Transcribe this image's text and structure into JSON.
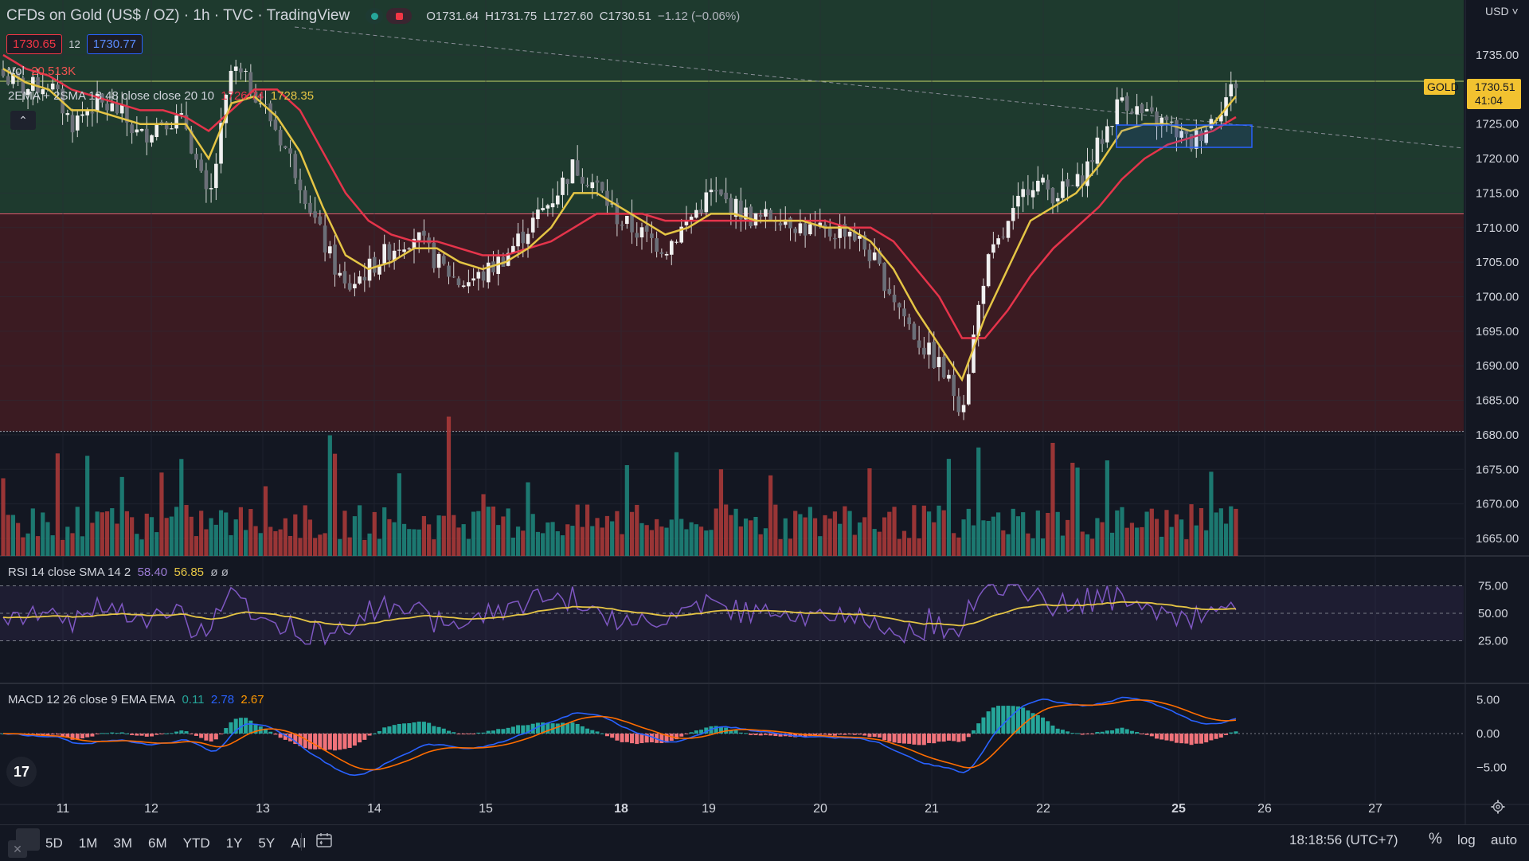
{
  "header": {
    "symbol": "CFDs on Gold (US$ / OZ)",
    "interval": "1h",
    "source": "TVC",
    "brand": "TradingView",
    "open_label": "O",
    "open": "1731.64",
    "high_label": "H",
    "high": "1731.75",
    "low_label": "L",
    "low": "1727.60",
    "close_label": "C",
    "close": "1730.51",
    "change": "−1.12 (−0.06%)"
  },
  "trade": {
    "sell": "1730.65",
    "spread": "12",
    "buy": "1730.77"
  },
  "volume": {
    "label": "Vol",
    "value": "20.513K"
  },
  "ma_legend": {
    "label": "2EMA + 2SMA 13 48 close close 20 10",
    "v1": "1726.74",
    "v2": "1728.35"
  },
  "rsi_legend": {
    "label": "RSI 14 close SMA 14 2",
    "v1": "58.40",
    "v2": "56.85",
    "extra": "ø ø"
  },
  "macd_legend": {
    "label": "MACD 12 26 close 9 EMA EMA",
    "v1": "0.11",
    "v2": "2.78",
    "v3": "2.67"
  },
  "currency": "USD",
  "price_axis": [
    "1735.00",
    "1730.00",
    "1725.00",
    "1720.00",
    "1715.00",
    "1710.00",
    "1705.00",
    "1700.00",
    "1695.00",
    "1690.00",
    "1685.00",
    "1680.00",
    "1675.00",
    "1670.00",
    "1665.00"
  ],
  "rsi_axis": [
    "75.00",
    "50.00",
    "25.00"
  ],
  "macd_axis": [
    "5.00",
    "0.00",
    "−5.00"
  ],
  "last_price": {
    "tag": "GOLD",
    "value": "1730.51",
    "countdown": "41:04"
  },
  "time_axis": [
    {
      "label": "11",
      "bold": false
    },
    {
      "label": "12",
      "bold": false
    },
    {
      "label": "13",
      "bold": false
    },
    {
      "label": "14",
      "bold": false
    },
    {
      "label": "15",
      "bold": false
    },
    {
      "label": "18",
      "bold": true
    },
    {
      "label": "19",
      "bold": false
    },
    {
      "label": "20",
      "bold": false
    },
    {
      "label": "21",
      "bold": false
    },
    {
      "label": "22",
      "bold": false
    },
    {
      "label": "25",
      "bold": true
    },
    {
      "label": "26",
      "bold": false
    },
    {
      "label": "27",
      "bold": false
    }
  ],
  "bottom": {
    "ranges": [
      "5D",
      "1M",
      "3M",
      "6M",
      "YTD",
      "1Y",
      "5Y",
      "All"
    ],
    "clock": "18:18:56 (UTC+7)",
    "percent": "%",
    "log": "log",
    "auto": "auto"
  },
  "colors": {
    "up": "#26a69a",
    "down": "#ef5350",
    "ema_fast": "#e5c545",
    "ema_slow": "#e5344b",
    "zone_green": "#1e3a2e",
    "zone_red": "#3b1b22",
    "rsi": "#7e57c2",
    "macd": "#2962ff",
    "signal": "#ff6d00"
  },
  "chart_data": {
    "type": "candlestick",
    "price_range": [
      1662,
      1741
    ],
    "candles_approx": [
      [
        1734,
        1736,
        1730,
        1732
      ],
      [
        1732,
        1734,
        1729,
        1730
      ],
      [
        1730,
        1733,
        1727,
        1731
      ],
      [
        1731,
        1732,
        1724,
        1725
      ],
      [
        1725,
        1730,
        1723,
        1728
      ],
      [
        1728,
        1731,
        1726,
        1727
      ],
      [
        1727,
        1728,
        1722,
        1723
      ],
      [
        1723,
        1727,
        1722,
        1726
      ],
      [
        1726,
        1728,
        1724,
        1725
      ],
      [
        1725,
        1727,
        1710,
        1713
      ],
      [
        1713,
        1738,
        1710,
        1733
      ],
      [
        1733,
        1737,
        1728,
        1730
      ],
      [
        1730,
        1732,
        1722,
        1724
      ],
      [
        1724,
        1726,
        1715,
        1717
      ],
      [
        1717,
        1718,
        1705,
        1708
      ],
      [
        1708,
        1712,
        1698,
        1701
      ],
      [
        1701,
        1706,
        1699,
        1704
      ],
      [
        1704,
        1709,
        1702,
        1707
      ],
      [
        1707,
        1710,
        1704,
        1709
      ],
      [
        1709,
        1710,
        1703,
        1705
      ],
      [
        1705,
        1707,
        1700,
        1702
      ],
      [
        1702,
        1705,
        1699,
        1703
      ],
      [
        1703,
        1708,
        1702,
        1706
      ],
      [
        1706,
        1712,
        1705,
        1710
      ],
      [
        1710,
        1716,
        1708,
        1714
      ],
      [
        1714,
        1721,
        1712,
        1719
      ],
      [
        1719,
        1721,
        1714,
        1716
      ],
      [
        1716,
        1717,
        1710,
        1711
      ],
      [
        1711,
        1714,
        1707,
        1709
      ],
      [
        1709,
        1711,
        1705,
        1707
      ],
      [
        1707,
        1712,
        1706,
        1711
      ],
      [
        1711,
        1717,
        1710,
        1715
      ],
      [
        1715,
        1717,
        1711,
        1713
      ],
      [
        1713,
        1715,
        1709,
        1711
      ],
      [
        1711,
        1714,
        1710,
        1712
      ],
      [
        1712,
        1714,
        1709,
        1710
      ],
      [
        1710,
        1712,
        1707,
        1709
      ],
      [
        1709,
        1712,
        1706,
        1710
      ],
      [
        1710,
        1711,
        1704,
        1706
      ],
      [
        1706,
        1707,
        1698,
        1700
      ],
      [
        1700,
        1701,
        1692,
        1694
      ],
      [
        1694,
        1696,
        1688,
        1690
      ],
      [
        1690,
        1691,
        1681,
        1684
      ],
      [
        1684,
        1706,
        1682,
        1704
      ],
      [
        1704,
        1712,
        1703,
        1710
      ],
      [
        1710,
        1718,
        1709,
        1717
      ],
      [
        1717,
        1719,
        1713,
        1715
      ],
      [
        1715,
        1718,
        1712,
        1716
      ],
      [
        1716,
        1724,
        1715,
        1722
      ],
      [
        1722,
        1735,
        1720,
        1729
      ],
      [
        1729,
        1730,
        1724,
        1726
      ],
      [
        1726,
        1729,
        1723,
        1725
      ],
      [
        1725,
        1727,
        1720,
        1722
      ],
      [
        1722,
        1727,
        1721,
        1726
      ],
      [
        1726,
        1736,
        1725,
        1731
      ]
    ],
    "ema_fast_approx": [
      1733,
      1731,
      1730,
      1727,
      1727,
      1726,
      1725,
      1725,
      1725,
      1720,
      1728,
      1729,
      1726,
      1721,
      1713,
      1706,
      1704,
      1705,
      1707,
      1707,
      1705,
      1704,
      1705,
      1707,
      1710,
      1715,
      1715,
      1713,
      1711,
      1709,
      1710,
      1712,
      1712,
      1711,
      1711,
      1711,
      1710,
      1710,
      1708,
      1704,
      1698,
      1693,
      1688,
      1697,
      1704,
      1711,
      1713,
      1715,
      1719,
      1724,
      1725,
      1725,
      1724,
      1725,
      1729
    ],
    "ema_slow_approx": [
      1735,
      1733,
      1732,
      1730,
      1729,
      1728,
      1727,
      1727,
      1726,
      1724,
      1727,
      1730,
      1730,
      1727,
      1721,
      1715,
      1711,
      1709,
      1708,
      1708,
      1707,
      1706,
      1706,
      1707,
      1708,
      1710,
      1712,
      1712,
      1712,
      1711,
      1711,
      1711,
      1711,
      1711,
      1711,
      1711,
      1711,
      1710,
      1710,
      1708,
      1704,
      1700,
      1694,
      1694,
      1698,
      1703,
      1707,
      1710,
      1713,
      1717,
      1720,
      1722,
      1723,
      1724,
      1726
    ],
    "rsi": {
      "levels": [
        75,
        50,
        25
      ],
      "range": [
        0,
        100
      ]
    },
    "macd": {
      "range": [
        -8,
        7
      ]
    }
  }
}
